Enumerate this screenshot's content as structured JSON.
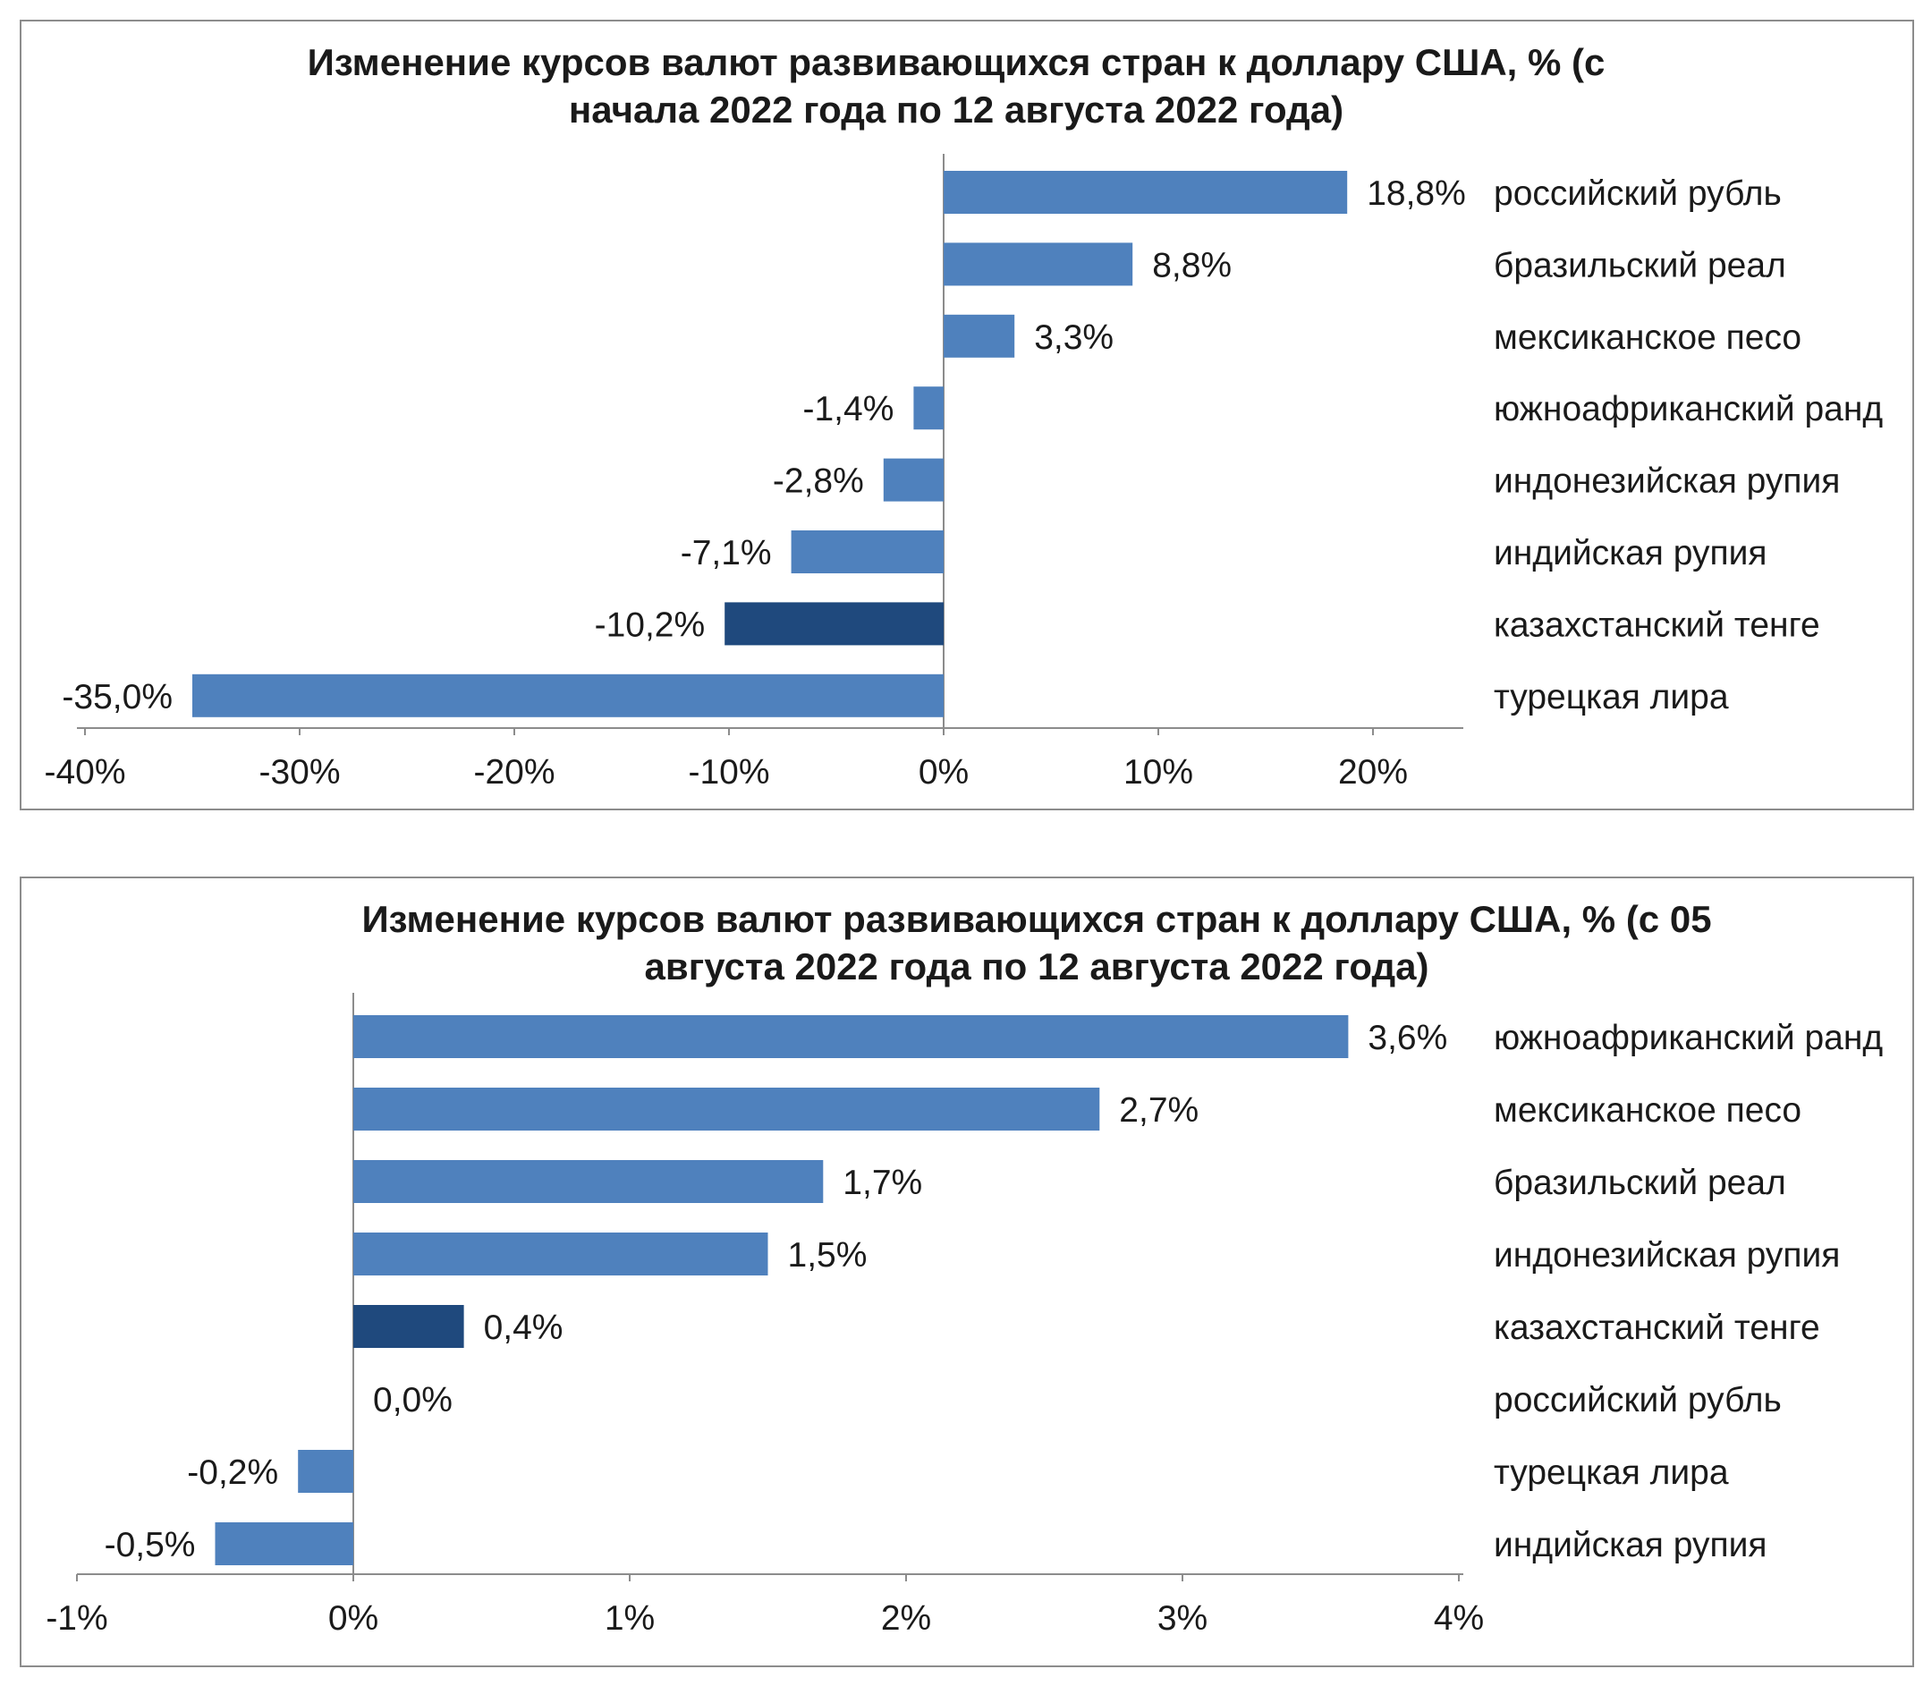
{
  "colors": {
    "bar": "#4f81bd",
    "highlight": "#1f497d",
    "axis": "#8c8c8c"
  },
  "chart_data": [
    {
      "type": "bar",
      "orientation": "horizontal",
      "title_lines": [
        "Изменение курсов валют развивающихся стран к доллару США, % (с",
        "начала 2022 года по 12 августа 2022 года)"
      ],
      "categories": [
        "российский рубль",
        "бразильский реал",
        "мексиканское песо",
        "южноафриканский ранд",
        "индонезийская рупия",
        "индийская рупия",
        "казахстанский тенге",
        "турецкая лира"
      ],
      "values": [
        18.8,
        8.8,
        3.3,
        -1.4,
        -2.8,
        -7.1,
        -10.2,
        -35.0
      ],
      "value_labels": [
        "18,8%",
        "8,8%",
        "3,3%",
        "-1,4%",
        "-2,8%",
        "-7,1%",
        "-10,2%",
        "-35,0%"
      ],
      "highlight_index": 6,
      "xlim": [
        -40,
        25
      ],
      "ticks": [
        -40,
        -30,
        -20,
        -10,
        0,
        10,
        20
      ],
      "tick_labels": [
        "-40%",
        "-30%",
        "-20%",
        "-10%",
        "0%",
        "10%",
        "20%"
      ],
      "xlabel": "",
      "ylabel": "",
      "grid": false,
      "legend": "none"
    },
    {
      "type": "bar",
      "orientation": "horizontal",
      "title_lines": [
        "Изменение курсов валют развивающихся стран к доллару США, % (с 05",
        "августа 2022 года по 12 августа 2022 года)"
      ],
      "categories": [
        "южноафриканский ранд",
        "мексиканское песо",
        "бразильский реал",
        "индонезийская рупия",
        "казахстанский тенге",
        "российский рубль",
        "турецкая лира",
        "индийская рупия"
      ],
      "values": [
        3.6,
        2.7,
        1.7,
        1.5,
        0.4,
        0.0,
        -0.2,
        -0.5
      ],
      "value_labels": [
        "3,6%",
        "2,7%",
        "1,7%",
        "1,5%",
        "0,4%",
        "0,0%",
        "-0,2%",
        "-0,5%"
      ],
      "highlight_index": 4,
      "xlim": [
        -1,
        4
      ],
      "ticks": [
        -1,
        0,
        1,
        2,
        3,
        4
      ],
      "tick_labels": [
        "-1%",
        "0%",
        "1%",
        "2%",
        "3%",
        "4%"
      ],
      "xlabel": "",
      "ylabel": "",
      "grid": false,
      "legend": "none"
    }
  ]
}
